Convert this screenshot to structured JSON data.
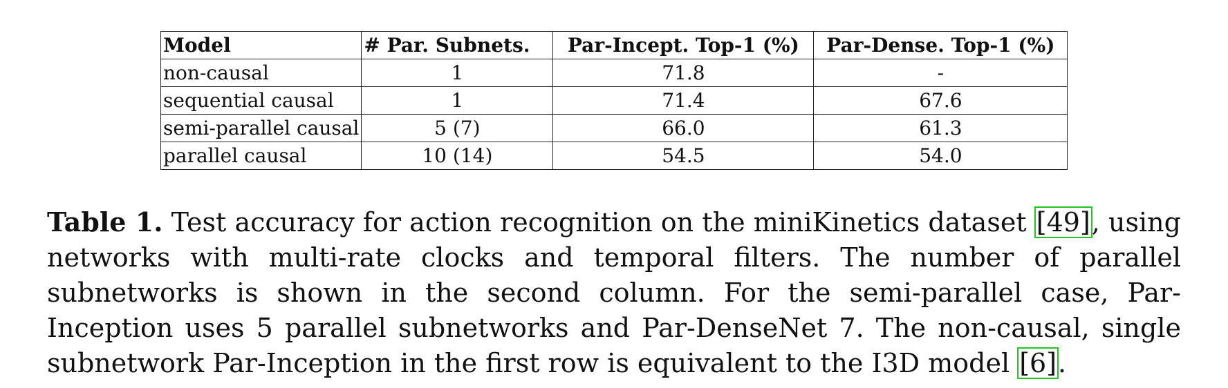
{
  "table": {
    "headers": [
      "Model",
      "# Par. Subnets.",
      "Par-Incept. Top-1 (%)",
      "Par-Dense. Top-1 (%)"
    ],
    "rows": [
      {
        "model": "non-causal",
        "subnets": "1",
        "incept": "71.8",
        "dense": "-"
      },
      {
        "model": "sequential causal",
        "subnets": "1",
        "incept": "71.4",
        "dense": "67.6"
      },
      {
        "model": "semi-parallel causal",
        "subnets": "5 (7)",
        "incept": "66.0",
        "dense": "61.3"
      },
      {
        "model": "parallel causal",
        "subnets": "10 (14)",
        "incept": "54.5",
        "dense": "54.0"
      }
    ]
  },
  "caption": {
    "label": "Table 1.",
    "text_1": " Test accuracy for action recognition on the miniKinetics dataset ",
    "cite_1": "[49]",
    "text_2": ", using networks with multi-rate clocks and temporal filters. The number of parallel subnetworks is shown in the second column. For the semi-parallel case, Par-Inception uses 5 parallel subnetworks and Par-DenseNet 7. The non-causal, single subnetwork Par-Inception in the first row is equivalent to the I3D model ",
    "cite_2": "[6]",
    "text_3": ".",
    "cite_color": "#21c521"
  }
}
